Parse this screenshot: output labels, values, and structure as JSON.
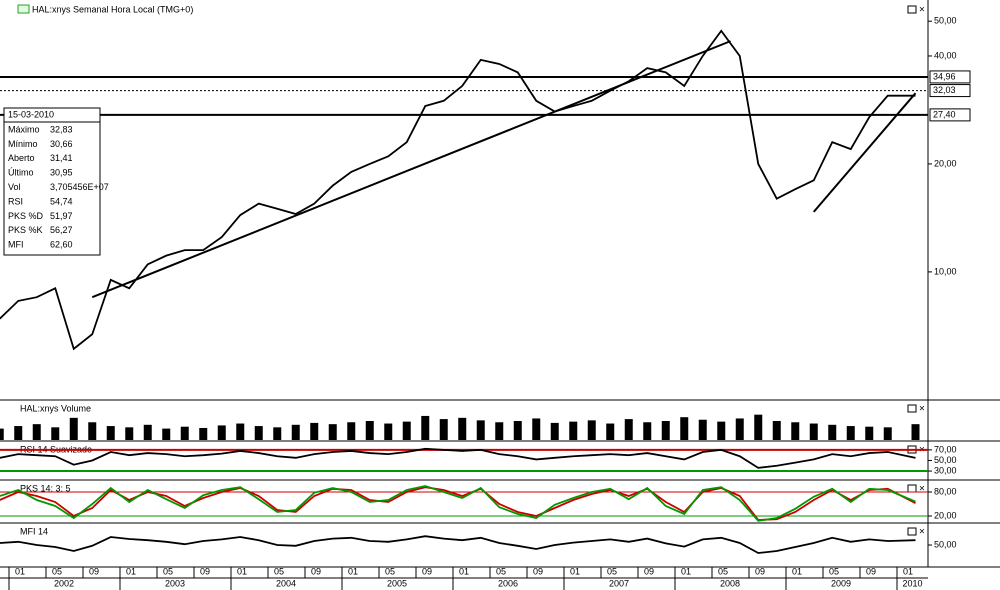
{
  "chart_data": [
    {
      "type": "line",
      "title": "HAL:xnys Semanal Hora Local (TMG+0)",
      "log_scale": true,
      "color": "#000000",
      "x": [
        "2001-12",
        "2002-02",
        "2002-04",
        "2002-06",
        "2002-08",
        "2002-10",
        "2002-12",
        "2003-02",
        "2003-04",
        "2003-06",
        "2003-08",
        "2003-10",
        "2003-12",
        "2004-02",
        "2004-04",
        "2004-06",
        "2004-08",
        "2004-10",
        "2004-12",
        "2005-02",
        "2005-04",
        "2005-06",
        "2005-08",
        "2005-10",
        "2005-12",
        "2006-02",
        "2006-04",
        "2006-06",
        "2006-08",
        "2006-10",
        "2006-12",
        "2007-02",
        "2007-04",
        "2007-06",
        "2007-08",
        "2007-10",
        "2007-12",
        "2008-02",
        "2008-04",
        "2008-06",
        "2008-08",
        "2008-10",
        "2008-12",
        "2009-02",
        "2009-04",
        "2009-06",
        "2009-08",
        "2009-10",
        "2009-12",
        "2010-03"
      ],
      "values": [
        7.4,
        8.3,
        8.5,
        9.0,
        6.1,
        6.7,
        9.5,
        9.0,
        10.5,
        11.1,
        11.5,
        11.5,
        12.5,
        14.4,
        15.5,
        15.0,
        14.5,
        15.5,
        17.4,
        19,
        20,
        21,
        23,
        29,
        30,
        33,
        39,
        38,
        36,
        30,
        28,
        29,
        30,
        32,
        34,
        37,
        36,
        33,
        40,
        47,
        40,
        20,
        16,
        17,
        18,
        23,
        22,
        27,
        31,
        31
      ],
      "ylim": [
        4.45,
        56.2
      ],
      "yticks": [
        {
          "value": 50,
          "label": "50,00"
        },
        {
          "value": 40,
          "label": "40,00"
        },
        {
          "value": 20,
          "label": "20,00"
        },
        {
          "value": 10,
          "label": "10,00"
        }
      ],
      "reference_lines": [
        {
          "value": 34.96,
          "label": "34,96",
          "style": "solid"
        },
        {
          "value": 32.03,
          "label": "32,03",
          "style": "dotted"
        },
        {
          "value": 27.4,
          "label": "27,40",
          "style": "solid"
        }
      ],
      "trendlines": [
        {
          "x": [
            "2002-10",
            "2008-07"
          ],
          "values": [
            8.5,
            44
          ]
        },
        {
          "x": [
            "2009-04",
            "2010-03"
          ],
          "values": [
            14.7,
            31.5
          ]
        }
      ],
      "xticks": [
        {
          "value": "2002-01",
          "label": "01"
        },
        {
          "value": "2002-05",
          "label": "05"
        },
        {
          "value": "2002-09",
          "label": "09"
        },
        {
          "value": "2003-01",
          "label": "01"
        },
        {
          "value": "2003-05",
          "label": "05"
        },
        {
          "value": "2003-09",
          "label": "09"
        },
        {
          "value": "2004-01",
          "label": "01"
        },
        {
          "value": "2004-05",
          "label": "05"
        },
        {
          "value": "2004-09",
          "label": "09"
        },
        {
          "value": "2005-01",
          "label": "01"
        },
        {
          "value": "2005-05",
          "label": "05"
        },
        {
          "value": "2005-09",
          "label": "09"
        },
        {
          "value": "2006-01",
          "label": "01"
        },
        {
          "value": "2006-05",
          "label": "05"
        },
        {
          "value": "2006-09",
          "label": "09"
        },
        {
          "value": "2007-01",
          "label": "01"
        },
        {
          "value": "2007-05",
          "label": "05"
        },
        {
          "value": "2007-09",
          "label": "09"
        },
        {
          "value": "2008-01",
          "label": "01"
        },
        {
          "value": "2008-05",
          "label": "05"
        },
        {
          "value": "2008-09",
          "label": "09"
        },
        {
          "value": "2009-01",
          "label": "01"
        },
        {
          "value": "2009-05",
          "label": "05"
        },
        {
          "value": "2009-09",
          "label": "09"
        },
        {
          "value": "2010-01",
          "label": "01"
        }
      ],
      "years": [
        2002,
        2003,
        2004,
        2005,
        2006,
        2007,
        2008,
        2009,
        2010
      ]
    },
    {
      "type": "bar",
      "title": "HAL:xnys Volume",
      "color": "#000000",
      "ylim": [
        0,
        60
      ],
      "x": [
        "2001-12",
        "2002-02",
        "2002-04",
        "2002-06",
        "2002-08",
        "2002-10",
        "2002-12",
        "2003-02",
        "2003-04",
        "2003-06",
        "2003-08",
        "2003-10",
        "2003-12",
        "2004-02",
        "2004-04",
        "2004-06",
        "2004-08",
        "2004-10",
        "2004-12",
        "2005-02",
        "2005-04",
        "2005-06",
        "2005-08",
        "2005-10",
        "2005-12",
        "2006-02",
        "2006-04",
        "2006-06",
        "2006-08",
        "2006-10",
        "2006-12",
        "2007-02",
        "2007-04",
        "2007-06",
        "2007-08",
        "2007-10",
        "2007-12",
        "2008-02",
        "2008-04",
        "2008-06",
        "2008-08",
        "2008-10",
        "2008-12",
        "2009-02",
        "2009-04",
        "2009-06",
        "2009-08",
        "2009-10",
        "2009-12",
        "2010-03"
      ],
      "values": [
        18,
        22,
        25,
        20,
        35,
        28,
        22,
        20,
        24,
        18,
        21,
        19,
        23,
        26,
        22,
        20,
        24,
        27,
        25,
        28,
        30,
        26,
        29,
        38,
        33,
        35,
        31,
        28,
        30,
        34,
        27,
        29,
        31,
        26,
        33,
        28,
        30,
        36,
        32,
        29,
        34,
        40,
        30,
        28,
        26,
        24,
        22,
        21,
        20,
        25
      ]
    },
    {
      "type": "line",
      "title": "RSI 14 Suavizado",
      "color": "#000000",
      "ylim": [
        15,
        83
      ],
      "yticks": [
        {
          "value": 70,
          "label": "70,00"
        },
        {
          "value": 50,
          "label": "50,00"
        },
        {
          "value": 30,
          "label": "30,00"
        }
      ],
      "levels": [
        {
          "value": 70,
          "color": "#cc0000"
        },
        {
          "value": 30,
          "color": "#009900"
        }
      ],
      "x": [
        "2001-12",
        "2002-02",
        "2002-04",
        "2002-06",
        "2002-08",
        "2002-10",
        "2002-12",
        "2003-02",
        "2003-04",
        "2003-06",
        "2003-08",
        "2003-10",
        "2003-12",
        "2004-02",
        "2004-04",
        "2004-06",
        "2004-08",
        "2004-10",
        "2004-12",
        "2005-02",
        "2005-04",
        "2005-06",
        "2005-08",
        "2005-10",
        "2005-12",
        "2006-02",
        "2006-04",
        "2006-06",
        "2006-08",
        "2006-10",
        "2006-12",
        "2007-02",
        "2007-04",
        "2007-06",
        "2007-08",
        "2007-10",
        "2007-12",
        "2008-02",
        "2008-04",
        "2008-06",
        "2008-08",
        "2008-10",
        "2008-12",
        "2009-02",
        "2009-04",
        "2009-06",
        "2009-08",
        "2009-10",
        "2009-12",
        "2010-03"
      ],
      "values": [
        55,
        62,
        60,
        58,
        42,
        50,
        66,
        60,
        64,
        62,
        58,
        60,
        63,
        68,
        64,
        58,
        55,
        62,
        66,
        68,
        64,
        62,
        66,
        72,
        70,
        68,
        70,
        62,
        58,
        52,
        55,
        58,
        60,
        62,
        60,
        64,
        58,
        52,
        66,
        70,
        58,
        36,
        40,
        46,
        52,
        62,
        58,
        64,
        66,
        55
      ]
    },
    {
      "type": "line",
      "title": "PKS 14: 3: 5",
      "ylim": [
        5,
        105
      ],
      "yticks": [
        {
          "value": 80,
          "label": "80,00"
        },
        {
          "value": 20,
          "label": "20,00"
        }
      ],
      "levels": [
        {
          "value": 80,
          "color": "#cc0000"
        },
        {
          "value": 20,
          "color": "#009900"
        }
      ],
      "x": [
        "2001-12",
        "2002-02",
        "2002-04",
        "2002-06",
        "2002-08",
        "2002-10",
        "2002-12",
        "2003-02",
        "2003-04",
        "2003-06",
        "2003-08",
        "2003-10",
        "2003-12",
        "2004-02",
        "2004-04",
        "2004-06",
        "2004-08",
        "2004-10",
        "2004-12",
        "2005-02",
        "2005-04",
        "2005-06",
        "2005-08",
        "2005-10",
        "2005-12",
        "2006-02",
        "2006-04",
        "2006-06",
        "2006-08",
        "2006-10",
        "2006-12",
        "2007-02",
        "2007-04",
        "2007-06",
        "2007-08",
        "2007-10",
        "2007-12",
        "2008-02",
        "2008-04",
        "2008-06",
        "2008-08",
        "2008-10",
        "2008-12",
        "2009-02",
        "2009-04",
        "2009-06",
        "2009-08",
        "2009-10",
        "2009-12",
        "2010-03"
      ],
      "series": [
        {
          "color": "#cc0000",
          "values": [
            60,
            80,
            70,
            55,
            20,
            40,
            85,
            60,
            80,
            70,
            45,
            65,
            80,
            90,
            70,
            35,
            30,
            70,
            88,
            85,
            60,
            55,
            80,
            92,
            85,
            70,
            88,
            50,
            30,
            20,
            40,
            60,
            75,
            85,
            70,
            88,
            55,
            30,
            80,
            90,
            70,
            10,
            12,
            30,
            60,
            85,
            60,
            85,
            88,
            52
          ]
        },
        {
          "color": "#009900",
          "values": [
            70,
            85,
            60,
            45,
            15,
            50,
            90,
            55,
            85,
            62,
            40,
            72,
            85,
            92,
            62,
            30,
            35,
            78,
            90,
            80,
            55,
            60,
            85,
            95,
            80,
            65,
            90,
            42,
            25,
            15,
            48,
            65,
            80,
            88,
            62,
            90,
            45,
            25,
            85,
            92,
            60,
            8,
            15,
            38,
            68,
            88,
            55,
            88,
            85,
            56
          ]
        }
      ]
    },
    {
      "type": "line",
      "title": "MFI 14",
      "color": "#000000",
      "ylim": [
        0,
        100
      ],
      "yticks": [
        {
          "value": 50,
          "label": "50,00"
        }
      ],
      "x": [
        "2001-12",
        "2002-02",
        "2002-04",
        "2002-06",
        "2002-08",
        "2002-10",
        "2002-12",
        "2003-02",
        "2003-04",
        "2003-06",
        "2003-08",
        "2003-10",
        "2003-12",
        "2004-02",
        "2004-04",
        "2004-06",
        "2004-08",
        "2004-10",
        "2004-12",
        "2005-02",
        "2005-04",
        "2005-06",
        "2005-08",
        "2005-10",
        "2005-12",
        "2006-02",
        "2006-04",
        "2006-06",
        "2006-08",
        "2006-10",
        "2006-12",
        "2007-02",
        "2007-04",
        "2007-06",
        "2007-08",
        "2007-10",
        "2007-12",
        "2008-02",
        "2008-04",
        "2008-06",
        "2008-08",
        "2008-10",
        "2008-12",
        "2009-02",
        "2009-04",
        "2009-06",
        "2009-08",
        "2009-10",
        "2009-12",
        "2010-03"
      ],
      "values": [
        55,
        58,
        50,
        45,
        35,
        48,
        70,
        65,
        62,
        58,
        52,
        60,
        64,
        70,
        62,
        50,
        48,
        60,
        66,
        68,
        60,
        58,
        64,
        72,
        66,
        62,
        68,
        55,
        48,
        40,
        50,
        56,
        60,
        64,
        58,
        66,
        54,
        46,
        64,
        68,
        55,
        30,
        35,
        45,
        55,
        68,
        58,
        64,
        60,
        62
      ]
    }
  ],
  "info_box": {
    "date": "15-03-2010",
    "rows": [
      {
        "label": "Máximo",
        "value": "32,83",
        "color": "#000000"
      },
      {
        "label": "Mínimo",
        "value": "30,66",
        "color": "#000000"
      },
      {
        "label": "Aberto",
        "value": "31,41",
        "color": "#000000"
      },
      {
        "label": "Último",
        "value": "30,95",
        "color": "#000000"
      },
      {
        "label": "Vol",
        "value": "3,705456E+07",
        "color": "#000000"
      },
      {
        "label": "RSI",
        "value": "54,74",
        "color": "#000000"
      },
      {
        "label": "PKS %D",
        "value": "51,97",
        "color": "#cc0000"
      },
      {
        "label": "PKS %K",
        "value": "56,27",
        "color": "#009900"
      },
      {
        "label": "MFI",
        "value": "62,60",
        "color": "#000000"
      }
    ]
  }
}
